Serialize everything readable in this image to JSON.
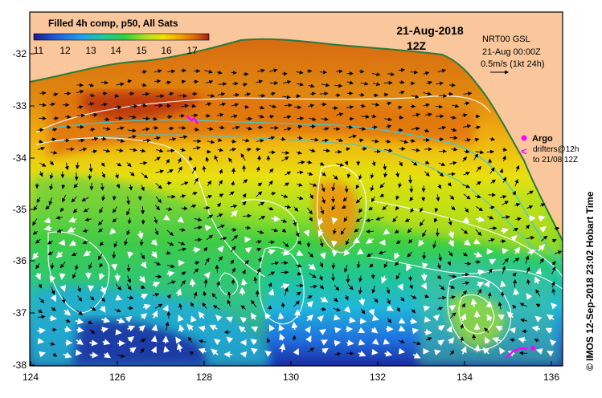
{
  "map": {
    "colorbar": {
      "title": "Filled 4h comp, p50, All Sats",
      "ticks": [
        "11",
        "12",
        "13",
        "14",
        "15",
        "16",
        "17"
      ]
    },
    "date": "21-Aug-2018",
    "hour": "12Z",
    "info": {
      "line1": "NRT00 GSL",
      "line2": "21-Aug 00:00Z",
      "line3": "0.5m/s (1kt 24h)"
    },
    "legend": {
      "argo": "Argo",
      "drifters1": "drifters@12h",
      "drifters2": "to 21/08 12Z"
    },
    "credit": "© IMOS 12-Sep-2018 23:02 Hobart Time",
    "lat_labels": [
      "-32",
      "-33",
      "-34",
      "-35",
      "-36",
      "-37",
      "-38"
    ],
    "lon_labels": [
      "124",
      "126",
      "128",
      "130",
      "132",
      "134",
      "136"
    ],
    "colors": {
      "land": "#f9c79b",
      "frame": "#000000",
      "altimetry_contour": "#ffffff",
      "shelf_break": "#40c8d8",
      "argo": "#ff00ff"
    }
  }
}
